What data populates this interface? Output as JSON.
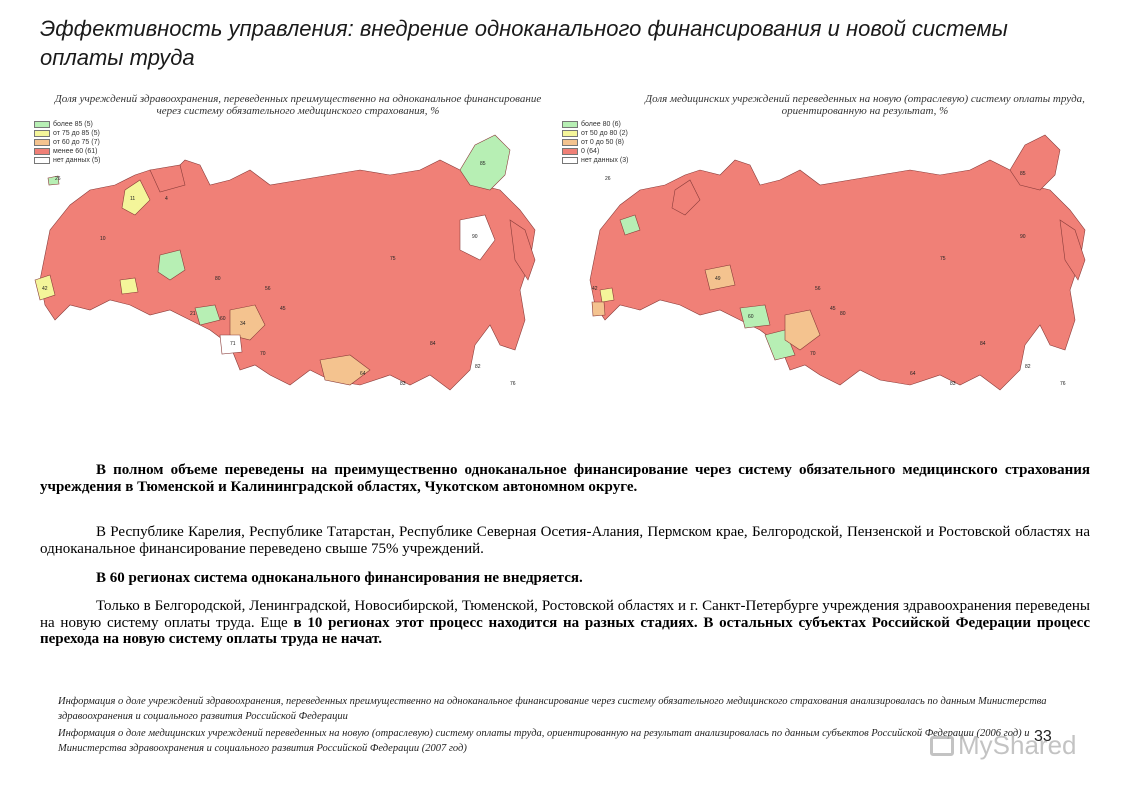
{
  "title": "Эффективность управления: внедрение одноканального финансирования и новой системы оплаты труда",
  "colors": {
    "over": "#b7efb4",
    "mid_high": "#f4f59a",
    "mid_low": "#f4c38f",
    "under": "#f08077",
    "none": "#ffffff",
    "border": "#8a3c3a"
  },
  "left_map": {
    "caption": "Доля учреждений здравоохранения, переведенных преимущественно на одноканальное финансирование через систему обязательного медицинского страхования, %",
    "legend": [
      {
        "label": "более 85 (5)",
        "color": "#b7efb4"
      },
      {
        "label": "от 75 до 85 (5)",
        "color": "#f4f59a"
      },
      {
        "label": "от 60 до 75 (7)",
        "color": "#f4c38f"
      },
      {
        "label": "менее 60 (61)",
        "color": "#f08077"
      },
      {
        "label": "нет данных (5)",
        "color": "#ffffff"
      }
    ],
    "region_labels": [
      "26",
      "85",
      "90",
      "4",
      "11",
      "75",
      "60",
      "34",
      "21",
      "80",
      "56",
      "45",
      "70",
      "71",
      "64",
      "84",
      "82",
      "83",
      "76",
      "42",
      "10"
    ]
  },
  "right_map": {
    "caption": "Доля медицинских учреждений переведенных на новую (отраслевую) систему оплаты труда, ориентированную на результат, %",
    "legend": [
      {
        "label": "более 80 (6)",
        "color": "#b7efb4"
      },
      {
        "label": "от 50 до 80 (2)",
        "color": "#f4f59a"
      },
      {
        "label": "от 0 до 50 (8)",
        "color": "#f4c38f"
      },
      {
        "label": "0 (64)",
        "color": "#f08077"
      },
      {
        "label": "нет данных (3)",
        "color": "#ffffff"
      }
    ],
    "region_labels": [
      "26",
      "85",
      "49",
      "90",
      "75",
      "60",
      "70",
      "80",
      "82",
      "83",
      "76",
      "42",
      "56",
      "45",
      "64",
      "84"
    ]
  },
  "paragraphs": {
    "p1": "В полном объеме переведены на преимущественно одноканальное финансирование через систему обязательного медицинского страхования учреждения в Тюменской и Калининградской областях, Чукотском автономном округе.",
    "p2": "В Республике Карелия, Республике Татарстан, Республике Северная Осетия-Алания, Пермском крае, Белгородской, Пензенской и Ростовской областях на одноканальное финансирование переведено свыше 75% учреждений.",
    "p3": "В 60 регионах система одноканального финансирования не внедряется.",
    "p4_normal": "Только в Белгородской, Ленинградской, Новосибирской, Тюменской, Ростовской областях и г. Санкт-Петербурге учреждения здравоохранения переведены на новую систему оплаты труда. Еще ",
    "p4_bold": "в 10 регионах этот процесс находится на разных стадиях. В остальных субъектах Российской Федерации процесс перехода на новую систему оплаты труда не начат."
  },
  "footnotes": {
    "f1": "Информация о доле учреждений здравоохранения, переведенных преимущественно на одноканальное финансирование через систему обязательного медицинского страхования анализировалась по данным Министерства здравоохранения и социального развития Российской Федерации",
    "f2": "Информация о доле медицинских учреждений переведенных на новую (отраслевую) систему оплаты труда, ориентированную на результат анализировалась по данным субъектов Российской Федерации (2006 год) и Министерства здравоохранения и социального развития Российской Федерации (2007 год)"
  },
  "page_number": "33",
  "watermark": "MyShared"
}
